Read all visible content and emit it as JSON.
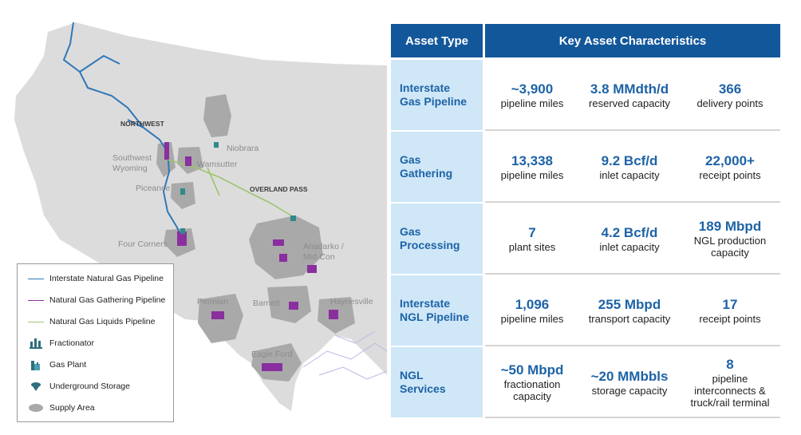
{
  "map": {
    "labels": {
      "northwest": "NORTHWEST",
      "southwest_wyoming": "Southwest\nWyoming",
      "niobrara": "Niobrara",
      "wamsutter": "Wamsutter",
      "overland_pass": "OVERLAND PASS",
      "piceance": "Piceance",
      "four_corners": "Four Corners",
      "anadarko": "Anadarko /\nMid-Con",
      "permian": "Permian",
      "barnett": "Barnett",
      "haynesville": "Haynesville",
      "eagle_ford": "Eagle Ford"
    },
    "colors": {
      "land": "#dcdcdc",
      "supply_area": "#a9a9a9",
      "interstate_gas": "#2f78b7",
      "gathering": "#8a2f9e",
      "ngl": "#9fc56d",
      "other_pipelines": "#b9b7e6"
    }
  },
  "legend": {
    "items": [
      {
        "label": "Interstate Natural Gas Pipeline",
        "icon": "blue-line-icon"
      },
      {
        "label": "Natural Gas Gathering Pipeline",
        "icon": "purple-line-icon"
      },
      {
        "label": "Natural Gas Liquids Pipeline",
        "icon": "green-line-icon"
      },
      {
        "label": "Fractionator",
        "icon": "fractionator-icon"
      },
      {
        "label": "Gas Plant",
        "icon": "gas-plant-icon"
      },
      {
        "label": "Underground Storage",
        "icon": "underground-storage-icon"
      },
      {
        "label": "Supply Area",
        "icon": "supply-area-icon"
      }
    ]
  },
  "table": {
    "header": {
      "asset_type": "Asset Type",
      "key_characteristics": "Key Asset Characteristics"
    },
    "colors": {
      "header_bg": "#13579b",
      "label_bg": "#cfe7f7",
      "value_text": "#1d63a6"
    },
    "rows": [
      {
        "label": "Interstate\nGas Pipeline",
        "cells": [
          {
            "value": "~3,900",
            "desc": "pipeline miles"
          },
          {
            "value": "3.8 MMdth/d",
            "desc": "reserved capacity"
          },
          {
            "value": "366",
            "desc": "delivery points"
          }
        ]
      },
      {
        "label": "Gas\nGathering",
        "cells": [
          {
            "value": "13,338",
            "desc": "pipeline miles"
          },
          {
            "value": "9.2 Bcf/d",
            "desc": "inlet capacity"
          },
          {
            "value": "22,000+",
            "desc": "receipt points"
          }
        ]
      },
      {
        "label": "Gas\nProcessing",
        "cells": [
          {
            "value": "7",
            "desc": "plant sites"
          },
          {
            "value": "4.2 Bcf/d",
            "desc": "inlet capacity"
          },
          {
            "value": "189 Mbpd",
            "desc": "NGL production\ncapacity"
          }
        ]
      },
      {
        "label": "Interstate\nNGL Pipeline",
        "cells": [
          {
            "value": "1,096",
            "desc": "pipeline miles"
          },
          {
            "value": "255 Mbpd",
            "desc": "transport capacity"
          },
          {
            "value": "17",
            "desc": "receipt points"
          }
        ]
      },
      {
        "label": "NGL\nServices",
        "cells": [
          {
            "value": "~50 Mbpd",
            "desc": "fractionation\ncapacity"
          },
          {
            "value": "~20 MMbbls",
            "desc": "storage capacity"
          },
          {
            "value": "8",
            "desc": "pipeline\ninterconnects &\ntruck/rail terminal"
          }
        ]
      }
    ]
  }
}
